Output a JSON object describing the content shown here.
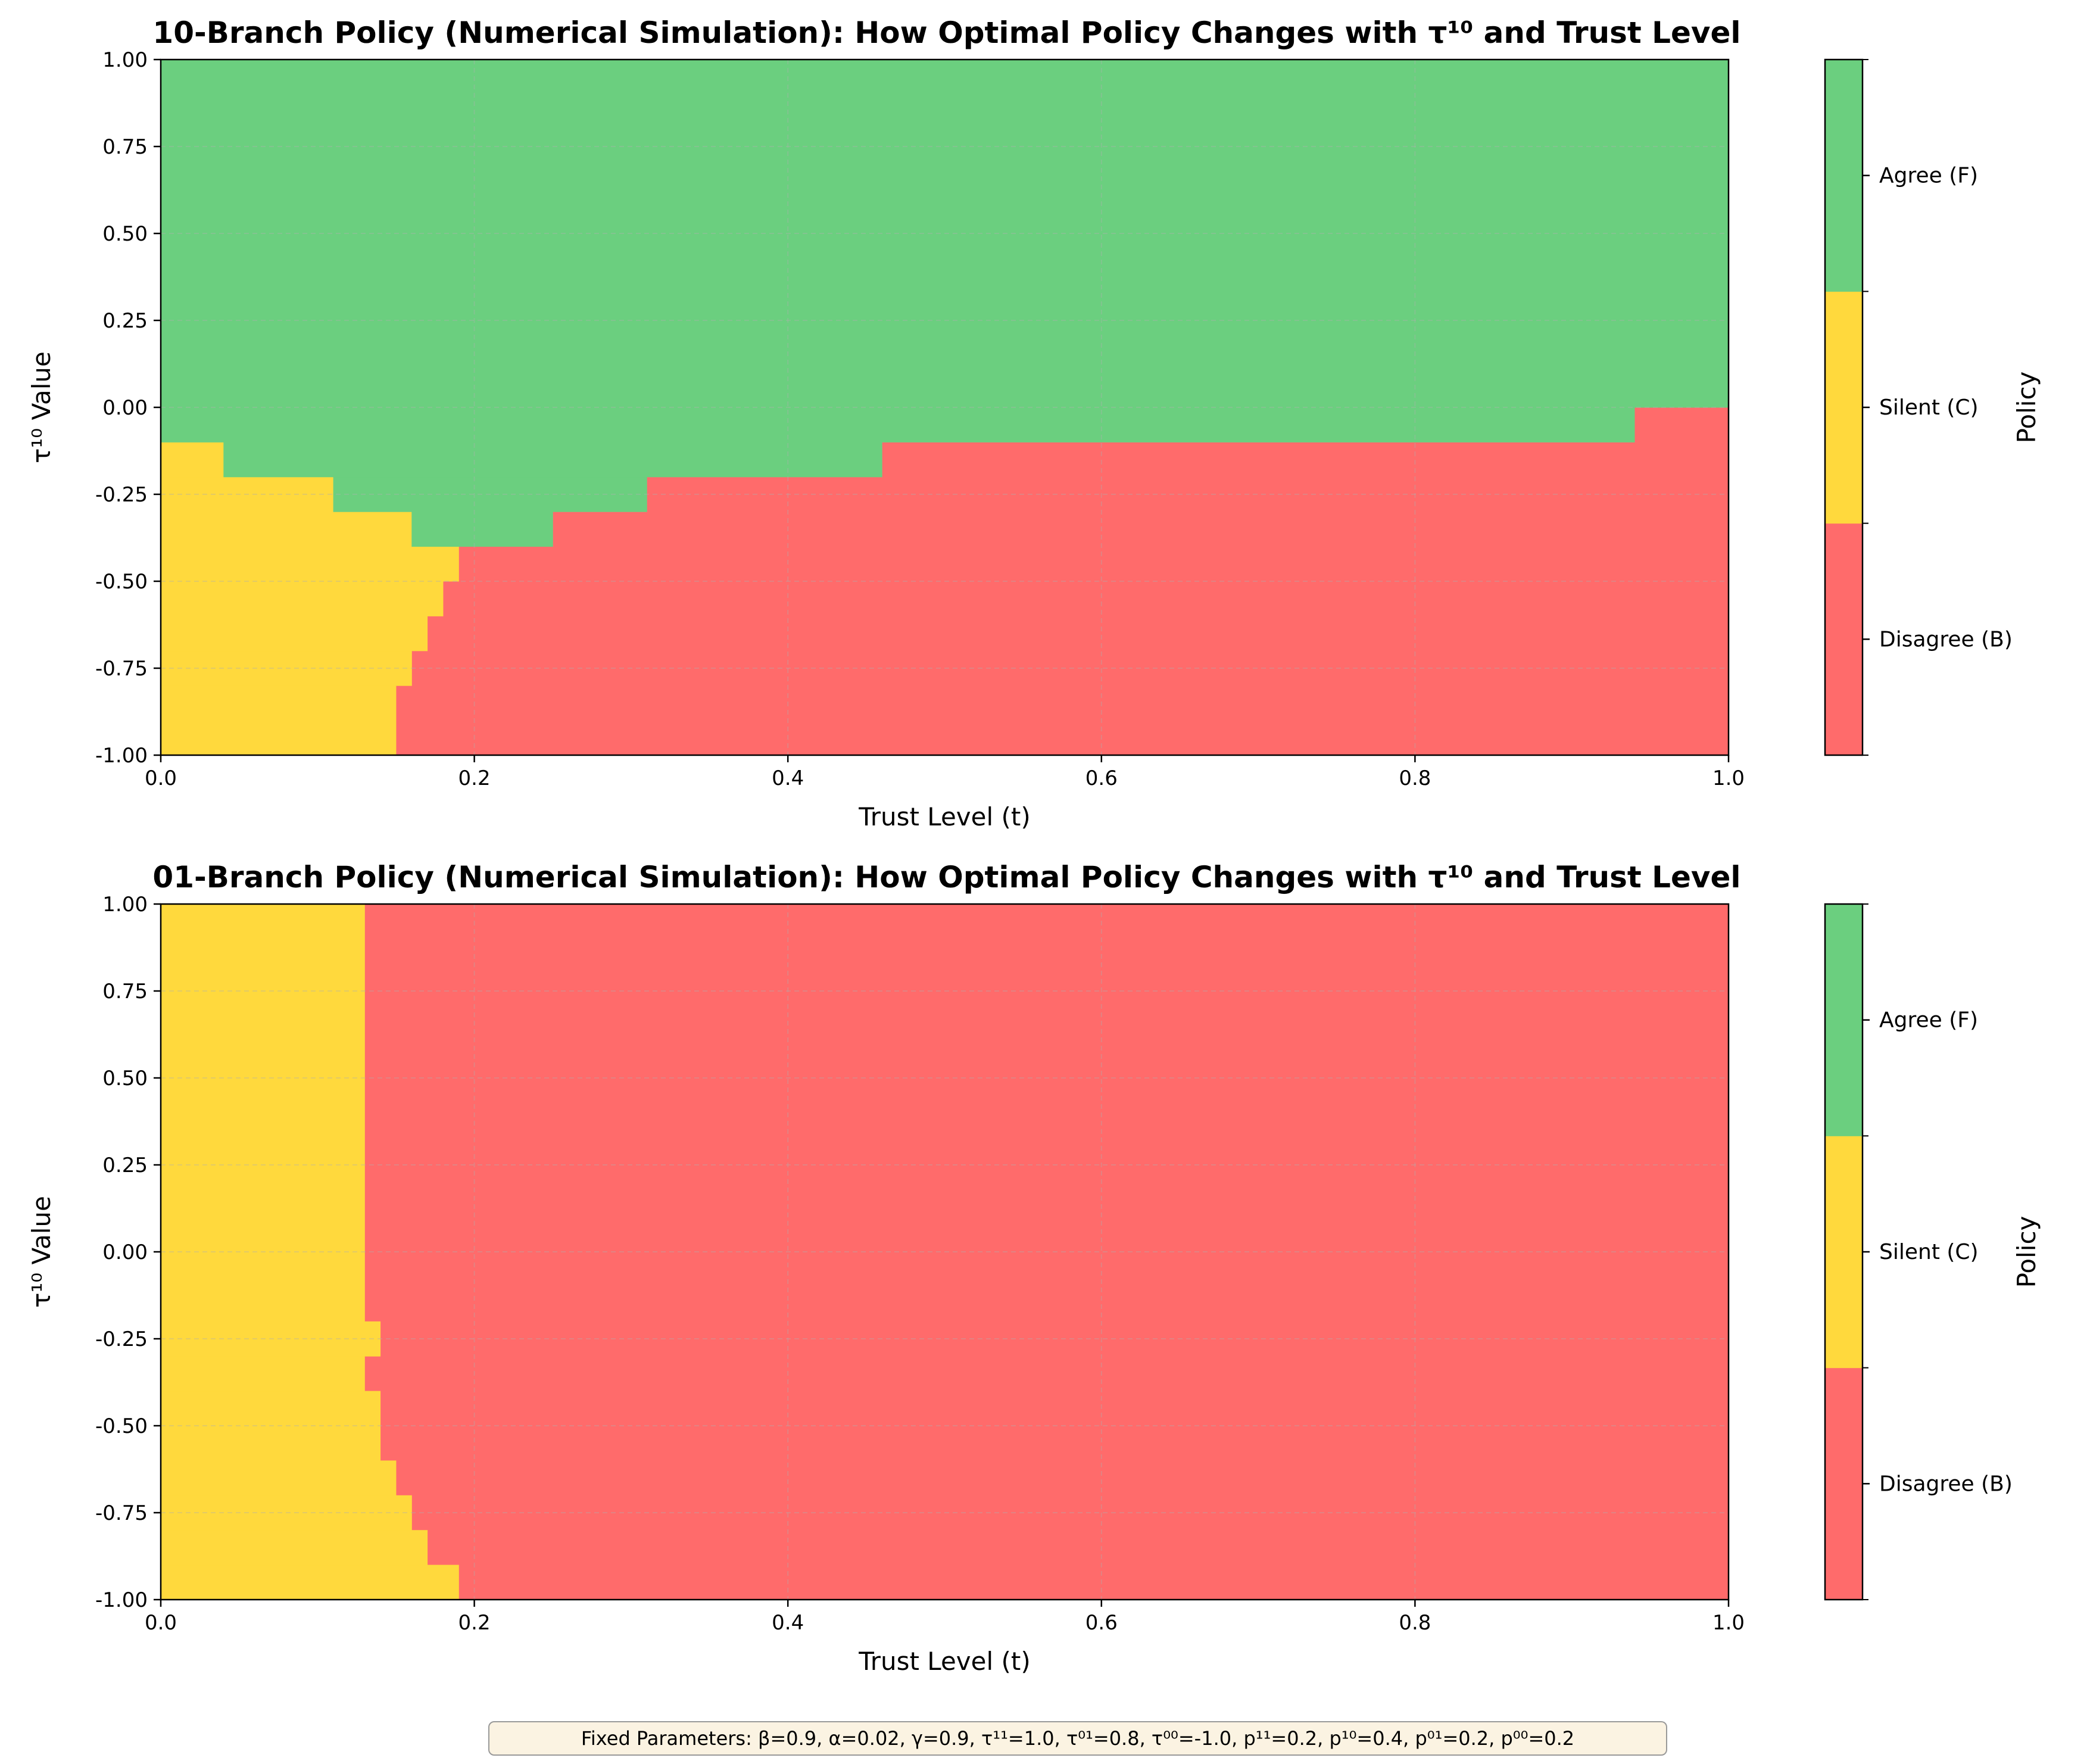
{
  "chart_data": [
    {
      "type": "heatmap",
      "title": "10-Branch Policy (Numerical Simulation): How Optimal Policy Changes with τ¹⁰ and Trust Level",
      "xlabel": "Trust Level (t)",
      "ylabel": "τ¹⁰ Value",
      "xlim": [
        0,
        1
      ],
      "ylim": [
        -1,
        1
      ],
      "x_ticks": [
        "0.0",
        "0.2",
        "0.4",
        "0.6",
        "0.8",
        "1.0"
      ],
      "y_ticks": [
        "-1.00",
        "-0.75",
        "-0.50",
        "-0.25",
        "0.00",
        "0.25",
        "0.50",
        "0.75",
        "1.00"
      ],
      "grid": true,
      "colorbar": {
        "label": "Policy",
        "classes": [
          "Disagree (B)",
          "Silent (C)",
          "Agree (F)"
        ]
      },
      "regions_by_tau_band": [
        {
          "tau_low": -1.0,
          "tau_high": -0.9,
          "silent_until_t": 0.15,
          "agree_until_t": 0.15
        },
        {
          "tau_low": -0.9,
          "tau_high": -0.8,
          "silent_until_t": 0.15,
          "agree_until_t": 0.15
        },
        {
          "tau_low": -0.8,
          "tau_high": -0.7,
          "silent_until_t": 0.16,
          "agree_until_t": 0.16
        },
        {
          "tau_low": -0.7,
          "tau_high": -0.6,
          "silent_until_t": 0.17,
          "agree_until_t": 0.17
        },
        {
          "tau_low": -0.6,
          "tau_high": -0.5,
          "silent_until_t": 0.18,
          "agree_until_t": 0.18
        },
        {
          "tau_low": -0.5,
          "tau_high": -0.4,
          "silent_until_t": 0.19,
          "agree_until_t": 0.19
        },
        {
          "tau_low": -0.4,
          "tau_high": -0.3,
          "silent_until_t": 0.16,
          "agree_until_t": 0.25
        },
        {
          "tau_low": -0.3,
          "tau_high": -0.2,
          "silent_until_t": 0.11,
          "agree_until_t": 0.31
        },
        {
          "tau_low": -0.2,
          "tau_high": -0.1,
          "silent_until_t": 0.04,
          "agree_until_t": 0.46
        },
        {
          "tau_low": -0.1,
          "tau_high": 0.0,
          "silent_until_t": 0.0,
          "agree_until_t": 0.94
        },
        {
          "tau_low": 0.0,
          "tau_high": 1.0,
          "silent_until_t": 0.0,
          "agree_until_t": 1.0
        }
      ]
    },
    {
      "type": "heatmap",
      "title": "01-Branch Policy (Numerical Simulation): How Optimal Policy Changes with τ¹⁰ and Trust Level",
      "xlabel": "Trust Level (t)",
      "ylabel": "τ¹⁰ Value",
      "xlim": [
        0,
        1
      ],
      "ylim": [
        -1,
        1
      ],
      "x_ticks": [
        "0.0",
        "0.2",
        "0.4",
        "0.6",
        "0.8",
        "1.0"
      ],
      "y_ticks": [
        "-1.00",
        "-0.75",
        "-0.50",
        "-0.25",
        "0.00",
        "0.25",
        "0.50",
        "0.75",
        "1.00"
      ],
      "grid": true,
      "colorbar": {
        "label": "Policy",
        "classes": [
          "Disagree (B)",
          "Silent (C)",
          "Agree (F)"
        ]
      },
      "regions_by_tau_band": [
        {
          "tau_low": -1.0,
          "tau_high": -0.9,
          "silent_until_t": 0.19,
          "agree_until_t": 0.19
        },
        {
          "tau_low": -0.9,
          "tau_high": -0.8,
          "silent_until_t": 0.17,
          "agree_until_t": 0.17
        },
        {
          "tau_low": -0.8,
          "tau_high": -0.7,
          "silent_until_t": 0.16,
          "agree_until_t": 0.16
        },
        {
          "tau_low": -0.7,
          "tau_high": -0.6,
          "silent_until_t": 0.15,
          "agree_until_t": 0.15
        },
        {
          "tau_low": -0.6,
          "tau_high": -0.5,
          "silent_until_t": 0.14,
          "agree_until_t": 0.14
        },
        {
          "tau_low": -0.5,
          "tau_high": -0.4,
          "silent_until_t": 0.14,
          "agree_until_t": 0.14
        },
        {
          "tau_low": -0.4,
          "tau_high": -0.3,
          "silent_until_t": 0.13,
          "agree_until_t": 0.13
        },
        {
          "tau_low": -0.3,
          "tau_high": -0.2,
          "silent_until_t": 0.14,
          "agree_until_t": 0.14
        },
        {
          "tau_low": -0.2,
          "tau_high": 1.0,
          "silent_until_t": 0.13,
          "agree_until_t": 0.13
        }
      ]
    }
  ],
  "colors": {
    "disagree": "#ff6b6b",
    "silent": "#ffd93d",
    "agree": "#6bcf7f"
  },
  "fixed_parameters": "Fixed Parameters: β=0.9, α=0.02, γ=0.9, τ¹¹=1.0, τ⁰¹=0.8, τ⁰⁰=-1.0, p¹¹=0.2, p¹⁰=0.4, p⁰¹=0.2, p⁰⁰=0.2"
}
